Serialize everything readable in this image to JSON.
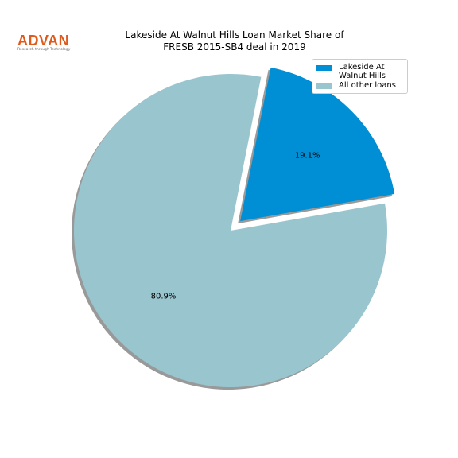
{
  "logo": {
    "text": "ADVAN",
    "tagline": "Research through Technology"
  },
  "chart_data": {
    "type": "pie",
    "title": "Lakeside At Walnut Hills Loan Market Share of FRESB 2015-SB4 deal in 2019",
    "categories": [
      "Lakeside At Walnut Hills",
      "All other loans"
    ],
    "values": [
      19.1,
      80.9
    ],
    "value_labels": [
      "19.1%",
      "80.9%"
    ],
    "colors": [
      "#008fd5",
      "#99c5cf"
    ],
    "legend": "upper right"
  }
}
